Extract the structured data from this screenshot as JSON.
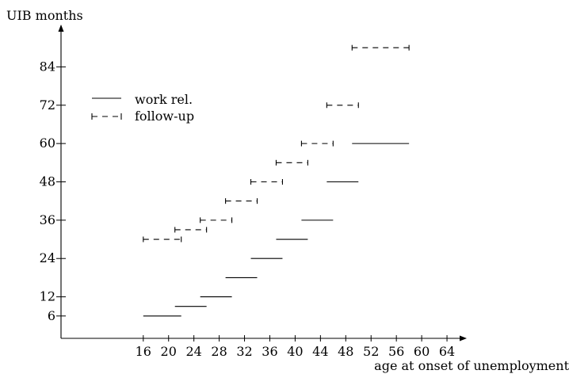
{
  "chart_data": {
    "type": "line",
    "ylabel": "UIB months",
    "xlabel": "age at onset of unemployment",
    "x_ticks": [
      16,
      20,
      24,
      28,
      32,
      36,
      40,
      44,
      48,
      52,
      56,
      60,
      64
    ],
    "y_ticks": [
      6,
      12,
      24,
      36,
      48,
      60,
      72,
      84
    ],
    "xlim": [
      3,
      67
    ],
    "ylim": [
      -1,
      97
    ],
    "legend_position": "top-left",
    "series": [
      {
        "name": "work rel.",
        "style": "solid",
        "segments": [
          {
            "x_start": 16,
            "x_end": 22,
            "y": 6
          },
          {
            "x_start": 21,
            "x_end": 26,
            "y": 9
          },
          {
            "x_start": 25,
            "x_end": 30,
            "y": 12
          },
          {
            "x_start": 29,
            "x_end": 34,
            "y": 18
          },
          {
            "x_start": 33,
            "x_end": 38,
            "y": 24
          },
          {
            "x_start": 37,
            "x_end": 42,
            "y": 30
          },
          {
            "x_start": 41,
            "x_end": 46,
            "y": 36
          },
          {
            "x_start": 45,
            "x_end": 50,
            "y": 48
          },
          {
            "x_start": 49,
            "x_end": 58,
            "y": 60
          }
        ]
      },
      {
        "name": "follow-up",
        "style": "dashed",
        "segments": [
          {
            "x_start": 16,
            "x_end": 22,
            "y": 30
          },
          {
            "x_start": 21,
            "x_end": 26,
            "y": 33
          },
          {
            "x_start": 25,
            "x_end": 30,
            "y": 36
          },
          {
            "x_start": 29,
            "x_end": 34,
            "y": 42
          },
          {
            "x_start": 33,
            "x_end": 38,
            "y": 48
          },
          {
            "x_start": 37,
            "x_end": 42,
            "y": 54
          },
          {
            "x_start": 41,
            "x_end": 46,
            "y": 60
          },
          {
            "x_start": 45,
            "x_end": 50,
            "y": 72
          },
          {
            "x_start": 49,
            "x_end": 58,
            "y": 90
          }
        ]
      }
    ]
  }
}
